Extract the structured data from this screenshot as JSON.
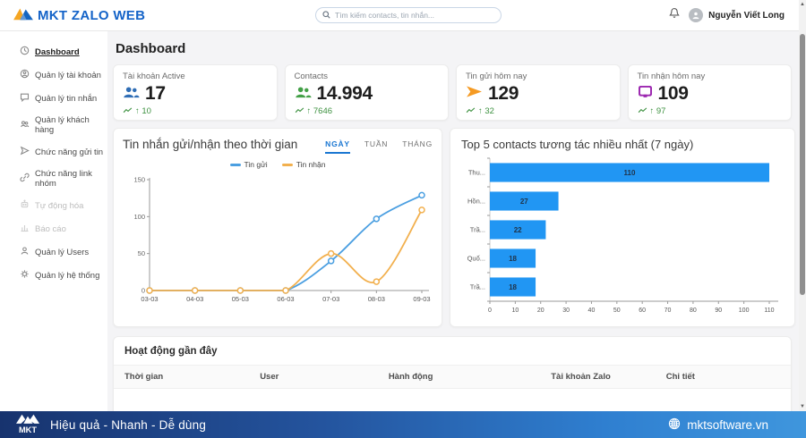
{
  "theme": {
    "accent": "#1976d2",
    "positive": "#3d9140"
  },
  "header": {
    "logo_text": "MKT ZALO WEB",
    "search_placeholder": "Tìm kiếm contacts, tin nhắn...",
    "user_name": "Nguyễn Viết Long"
  },
  "sidebar": {
    "items": [
      {
        "label": "Dashboard",
        "icon": "dashboard-icon",
        "active": true
      },
      {
        "label": "Quản lý tài khoản",
        "icon": "account-icon"
      },
      {
        "label": "Quản lý tin nhắn",
        "icon": "message-icon"
      },
      {
        "label": "Quản lý khách hàng",
        "icon": "customers-icon"
      },
      {
        "label": "Chức năng gửi tin",
        "icon": "send-icon"
      },
      {
        "label": "Chức năng link nhóm",
        "icon": "link-icon"
      },
      {
        "label": "Tự động hóa",
        "icon": "automation-icon",
        "disabled": true
      },
      {
        "label": "Báo cáo",
        "icon": "report-icon",
        "disabled": true
      },
      {
        "label": "Quản lý Users",
        "icon": "users-icon"
      },
      {
        "label": "Quản lý hệ thống",
        "icon": "gear-icon"
      }
    ]
  },
  "main": {
    "page_title": "Dashboard",
    "stat_cards": [
      {
        "label": "Tài khoản Active",
        "value": "17",
        "trend": "↑ 10",
        "icon": "users-group-icon",
        "icon_color": "#2f6db5"
      },
      {
        "label": "Contacts",
        "value": "14.994",
        "trend": "↑ 7646",
        "icon": "users-group-icon",
        "icon_color": "#43a047"
      },
      {
        "label": "Tin gửi hôm nay",
        "value": "129",
        "trend": "↑ 32",
        "icon": "send-arrow-icon",
        "icon_color": "#f59a23"
      },
      {
        "label": "Tin nhận hôm nay",
        "value": "109",
        "trend": "↑ 97",
        "icon": "message-square-icon",
        "icon_color": "#9c27b0"
      }
    ]
  },
  "chart_data": [
    {
      "type": "line",
      "title": "Tin nhắn gửi/nhận theo thời gian",
      "tabs": [
        "NGÀY",
        "TUẦN",
        "THÁNG"
      ],
      "active_tab": "NGÀY",
      "x": [
        "03-03",
        "04-03",
        "05-03",
        "06-03",
        "07-03",
        "08-03",
        "09-03"
      ],
      "series": [
        {
          "name": "Tin gửi",
          "color": "#4B9FE1",
          "values": [
            0,
            0,
            0,
            0,
            40,
            97,
            129
          ]
        },
        {
          "name": "Tin nhận",
          "color": "#F2B04E",
          "values": [
            0,
            0,
            0,
            0,
            50,
            12,
            109
          ]
        }
      ],
      "ylim": [
        0,
        150
      ],
      "yticks": [
        0,
        50,
        100,
        150
      ],
      "grid": false,
      "legend_position": "top"
    },
    {
      "type": "bar",
      "orientation": "horizontal",
      "title": "Top 5 contacts tương tác nhiều nhất (7 ngày)",
      "categories": [
        "Thu...",
        "Hồn...",
        "Trầ...",
        "Quố...",
        "Trầ..."
      ],
      "values": [
        110,
        27,
        22,
        18,
        18
      ],
      "bar_color": "#2196F3",
      "xlim": [
        0,
        110
      ],
      "xticks": [
        0,
        10,
        20,
        30,
        40,
        50,
        60,
        70,
        80,
        90,
        100,
        110
      ],
      "value_labels": true
    }
  ],
  "activity": {
    "title": "Hoạt động gần đây",
    "columns": [
      "Thời gian",
      "User",
      "Hành động",
      "Tài khoản Zalo",
      "Chi tiết"
    ],
    "rows": []
  },
  "footer": {
    "logo_text": "MKT",
    "slogan": "Hiệu quả - Nhanh - Dễ dùng",
    "website": "mktsoftware.vn"
  }
}
